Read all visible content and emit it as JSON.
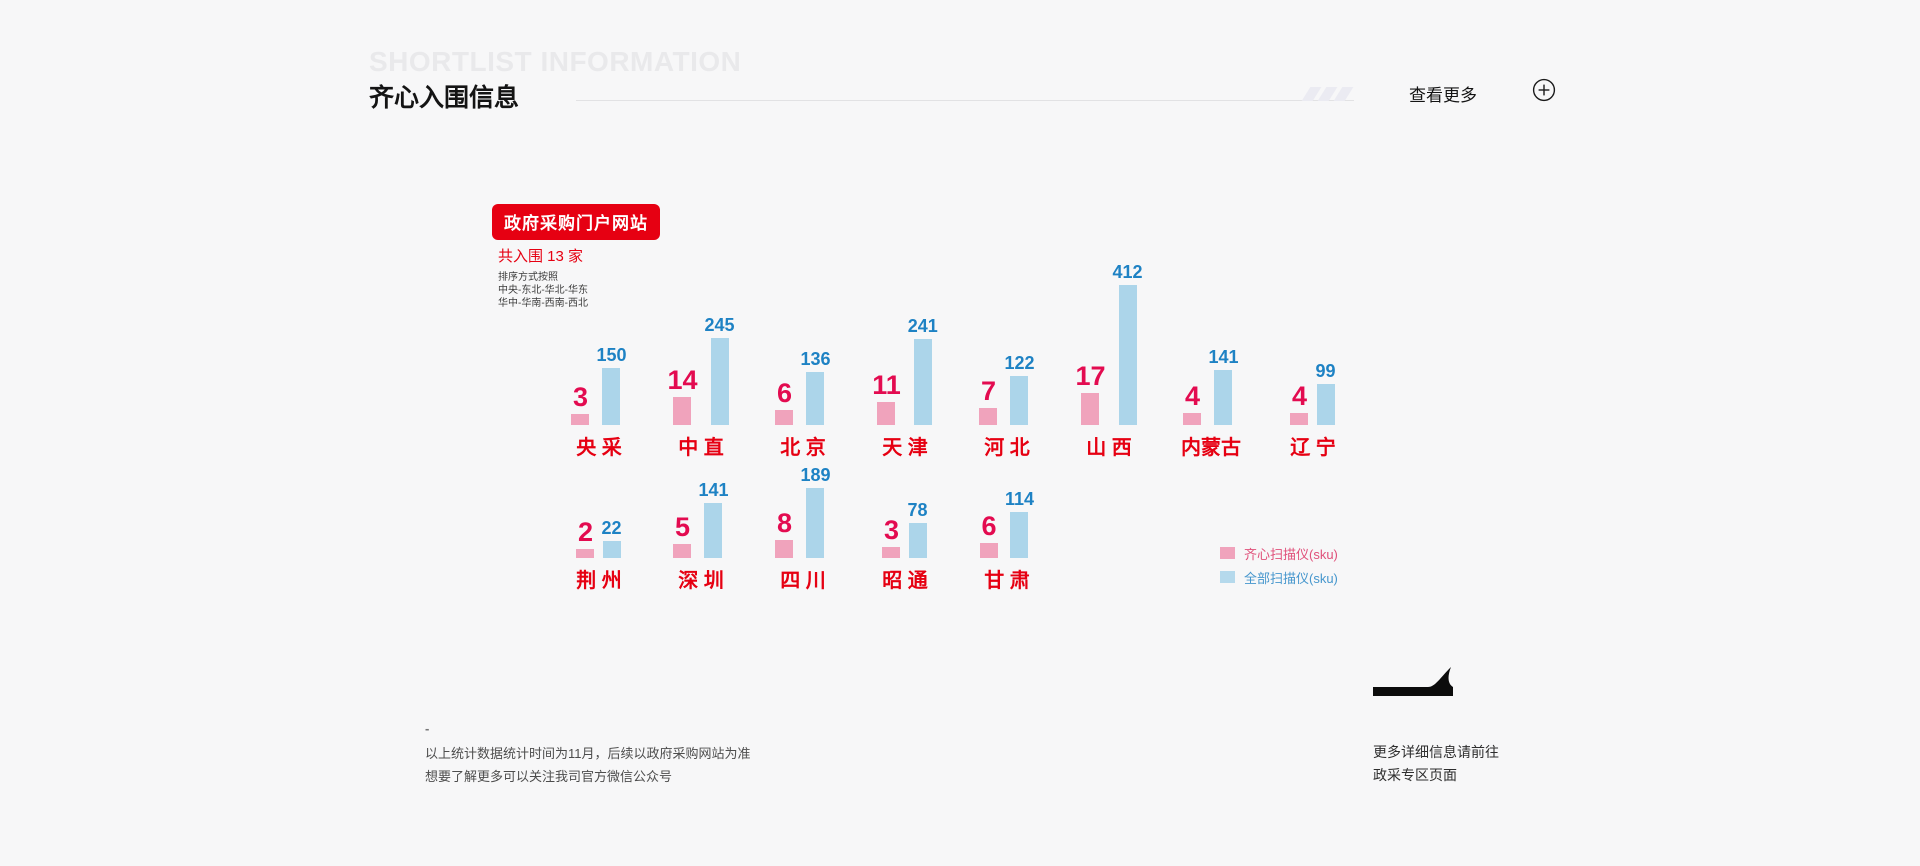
{
  "header": {
    "watermark": "SHORTLIST INFORMATION",
    "title": "齐心入围信息",
    "view_more": "查看更多"
  },
  "chart": {
    "badge": "政府采购门户网站",
    "subtitle": "共入围 13 家",
    "sort_note": [
      "排序方式按照",
      "中央-东北-华北-华东",
      "华中-华南-西南-西北"
    ]
  },
  "chart_data": {
    "type": "bar",
    "title": "齐心入围信息",
    "source_badge": "政府采购门户网站",
    "categories": [
      "央 采",
      "中 直",
      "北 京",
      "天 津",
      "河 北",
      "山 西",
      "内蒙古",
      "辽 宁",
      "荆 州",
      "深 圳",
      "四 川",
      "昭 通",
      "甘 肃"
    ],
    "series": [
      {
        "name": "齐心扫描仪(sku)",
        "color": "#f0a3bc",
        "label_color": "#e30b50",
        "values": [
          3,
          14,
          6,
          11,
          7,
          17,
          4,
          4,
          2,
          5,
          8,
          3,
          6
        ]
      },
      {
        "name": "全部扫描仪(sku)",
        "color": "#acd5ea",
        "label_color": "#1e82c4",
        "values": [
          150,
          245,
          136,
          241,
          122,
          412,
          141,
          99,
          22,
          141,
          189,
          78,
          114
        ]
      }
    ],
    "value_labels": true,
    "grid": false,
    "axes": "none",
    "legend_position": "right-middle",
    "layout": {
      "rows": [
        8,
        5
      ]
    }
  },
  "legend": [
    {
      "label": "齐心扫描仪(sku)",
      "color": "#f0a3bc"
    },
    {
      "label": "全部扫描仪(sku)",
      "color": "#acd5ea"
    }
  ],
  "footnote": {
    "dash": "-",
    "lines": [
      "以上统计数据统计时间为11月，后续以政府采购网站为准",
      "想要了解更多可以关注我司官方微信公众号"
    ]
  },
  "cta": {
    "icon": "plane-icon",
    "lines": [
      "更多详细信息请前往",
      "政采专区页面"
    ]
  },
  "colors": {
    "background": "#f7f7f8",
    "accent_red": "#e60012",
    "pink_bar": "#f0a3bc",
    "blue_bar": "#acd5ea",
    "pink_value": "#e30b50",
    "blue_value": "#1e82c4"
  }
}
